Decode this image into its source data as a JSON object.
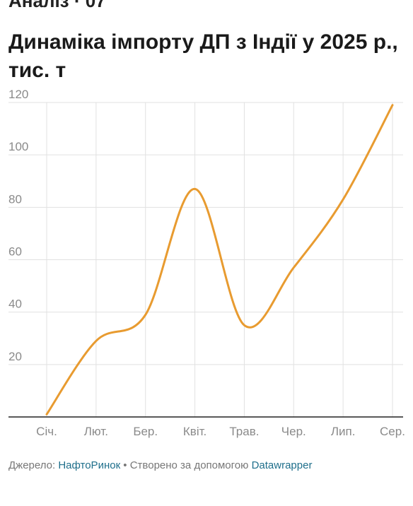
{
  "header": {
    "cut_text": "Аналіз · 07",
    "title": "Динаміка імпорту ДП з Індії у 2025 р., тис. т"
  },
  "chart_data": {
    "type": "line",
    "title": "Динаміка імпорту ДП з Індії у 2025 р., тис. т",
    "categories": [
      "Січ.",
      "Лют.",
      "Бер.",
      "Квіт.",
      "Трав.",
      "Чер.",
      "Лип.",
      "Сер."
    ],
    "series": [
      {
        "values": [
          1,
          29,
          39,
          87,
          35,
          57,
          83,
          119
        ]
      }
    ],
    "ylim": [
      0,
      120
    ],
    "yticks": [
      20,
      40,
      60,
      80,
      100,
      120
    ],
    "grid": true,
    "line_color": "#e89b30",
    "grid_color": "#e1e1e1",
    "axis_color": "#222222"
  },
  "footer": {
    "prefix": "Джерело: ",
    "source": "НафтоРинок",
    "middle": " • Створено за допомогою ",
    "tool": "Datawrapper"
  }
}
